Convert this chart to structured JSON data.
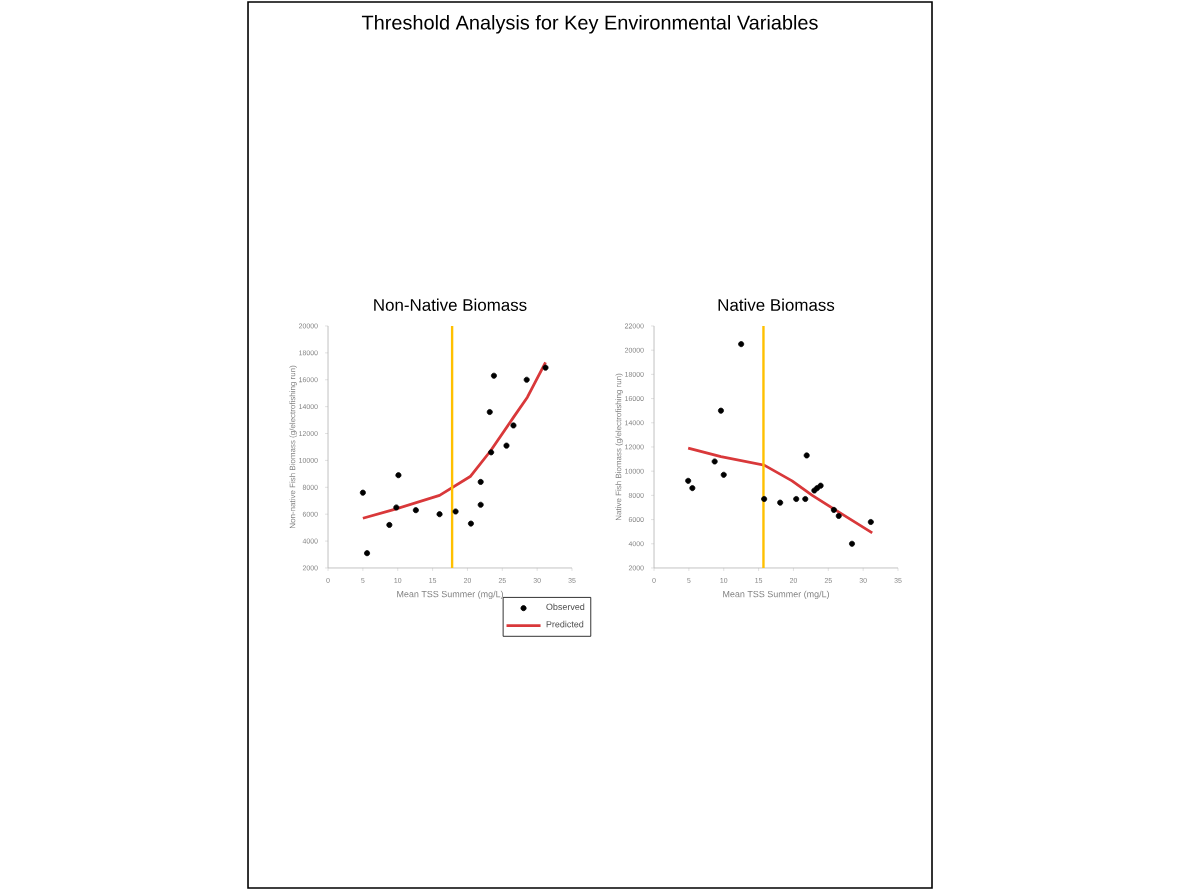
{
  "chart_data": [
    {
      "type": "scatter",
      "title": "Non-Native Biomass",
      "xlabel": "Mean TSS Summer (mg/L)",
      "ylabel": "Non-native Fish Biomass (g/electrofishing run)",
      "annotations": [
        "Threshold Analysis for Key Environmental Variables"
      ],
      "xlim": [
        0,
        35
      ],
      "xticks": [
        0,
        5,
        10,
        15,
        20,
        25,
        30,
        35
      ],
      "ylim": [
        2000,
        20000
      ],
      "yticks": [
        2000,
        4000,
        6000,
        8000,
        10000,
        12000,
        14000,
        16000,
        18000,
        20000
      ],
      "grid": false,
      "legend": false,
      "ref_lines": [
        {
          "axis": "x",
          "value": 17.8,
          "color": "#ffc000"
        }
      ],
      "series": [
        {
          "marker": "circle",
          "color": "#000000",
          "x": [
            5.0,
            5.6,
            8.8,
            10.1,
            9.8,
            12.6,
            16.0,
            18.3,
            20.5,
            21.9,
            21.9,
            23.2,
            23.8,
            23.4,
            25.6,
            26.6,
            28.5,
            31.2
          ],
          "values": [
            7600,
            3100,
            5200,
            8900,
            6500,
            6300,
            6000,
            6200,
            5300,
            8400,
            6700,
            13600,
            16300,
            10600,
            11100,
            12600,
            16000,
            16900
          ]
        },
        {
          "type": "line",
          "marker": "none",
          "color": "#d9383a",
          "x": [
            5.0,
            9.8,
            16.0,
            20.4,
            23.3,
            26.6,
            28.6,
            31.2
          ],
          "values": [
            5700,
            6400,
            7400,
            8800,
            10700,
            13200,
            14700,
            17300
          ]
        }
      ]
    },
    {
      "type": "scatter",
      "title": "Native Biomass",
      "xlabel": "Mean TSS Summer (mg/L)",
      "ylabel": "Native Fish Biomass (g/electrofishing run)",
      "xlim": [
        0,
        35
      ],
      "xticks": [
        0,
        5,
        10,
        15,
        20,
        25,
        30,
        35
      ],
      "ylim": [
        2000,
        22000
      ],
      "yticks": [
        2000,
        4000,
        6000,
        8000,
        10000,
        12000,
        14000,
        16000,
        18000,
        20000,
        22000
      ],
      "grid": false,
      "legend": "bottom left",
      "ref_lines": [
        {
          "axis": "x",
          "value": 15.7,
          "color": "#ffc000"
        }
      ],
      "series": [
        {
          "name": "Observed",
          "marker": "circle",
          "color": "#000000",
          "x": [
            4.9,
            5.5,
            8.7,
            9.6,
            10.0,
            12.5,
            15.8,
            18.1,
            20.4,
            21.9,
            21.7,
            23.0,
            23.4,
            23.9,
            25.8,
            26.5,
            28.4,
            31.1
          ],
          "values": [
            9200,
            8600,
            10800,
            15000,
            9700,
            20500,
            7700,
            7400,
            7700,
            11300,
            7700,
            8400,
            8600,
            8800,
            6800,
            6300,
            4000,
            5800
          ]
        },
        {
          "name": "Predicted",
          "type": "line",
          "marker": "none",
          "color": "#d9383a",
          "x": [
            4.9,
            9.6,
            15.8,
            19.8,
            22.7,
            26.0,
            31.3
          ],
          "values": [
            11900,
            11200,
            10500,
            9200,
            8000,
            6800,
            4900
          ]
        }
      ]
    }
  ]
}
